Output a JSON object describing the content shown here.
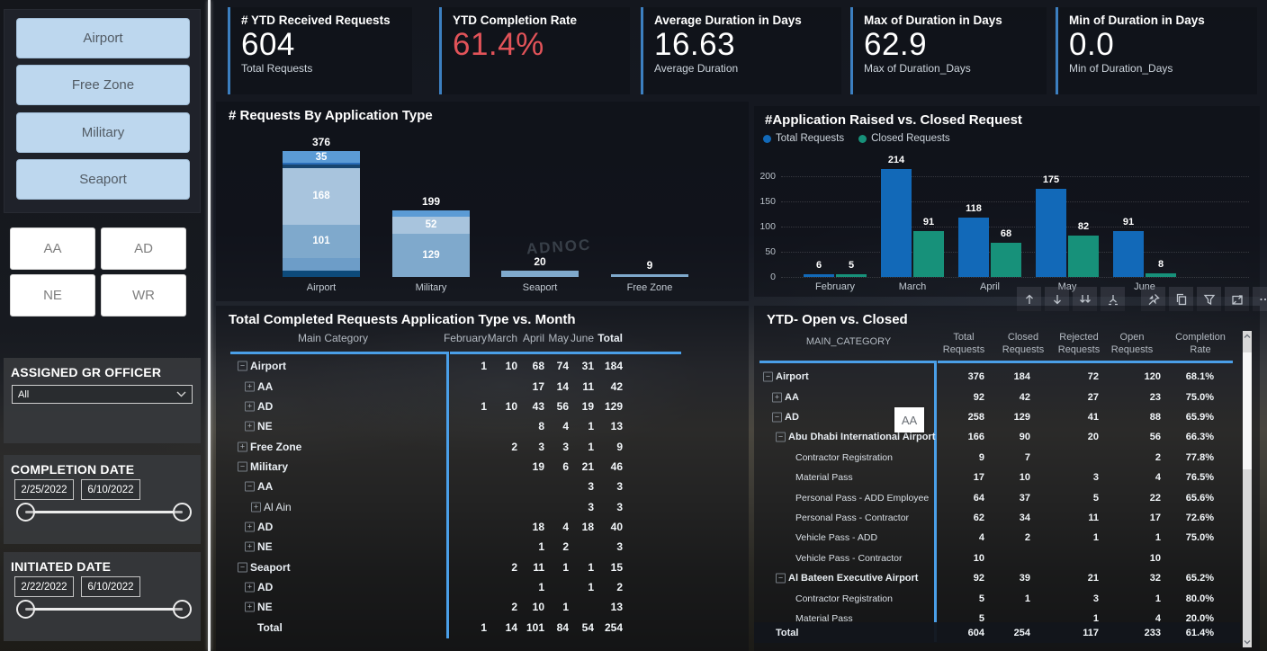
{
  "sidebar": {
    "category_buttons": [
      {
        "label": "Airport"
      },
      {
        "label": "Free Zone"
      },
      {
        "label": "Military"
      },
      {
        "label": "Seaport"
      }
    ],
    "region_buttons": [
      {
        "label": "AA"
      },
      {
        "label": "AD"
      },
      {
        "label": "NE"
      },
      {
        "label": "WR"
      }
    ],
    "gr_officer": {
      "label": "ASSIGNED GR OFFICER",
      "value": "All"
    },
    "completion_date": {
      "label": "COMPLETION DATE",
      "start": "2/25/2022",
      "end": "6/10/2022"
    },
    "initiated_date": {
      "label": "INITIATED DATE",
      "start": "2/22/2022",
      "end": "6/10/2022"
    }
  },
  "kpi_cards": [
    {
      "title": "# YTD Received Requests",
      "value": "604",
      "subtitle": "Total Requests",
      "value_color": "#ffffff"
    },
    {
      "title": "YTD Completion Rate",
      "value": "61.4%",
      "subtitle": "",
      "value_color": "#e25359"
    },
    {
      "title": "Average Duration in Days",
      "value": "16.63",
      "subtitle": "Average Duration",
      "value_color": "#ffffff"
    },
    {
      "title": "Max of Duration in Days",
      "value": "62.9",
      "subtitle": "Max of Duration_Days",
      "value_color": "#ffffff"
    },
    {
      "title": "Min of Duration in Days",
      "value": "0.0",
      "subtitle": "Min of Duration_Days",
      "value_color": "#ffffff"
    }
  ],
  "chart_data": [
    {
      "type": "bar",
      "variant": "stacked",
      "title": "# Requests By Application Type",
      "categories": [
        "Airport",
        "Military",
        "Seaport",
        "Free Zone"
      ],
      "totals": [
        376,
        199,
        20,
        9
      ],
      "bars": [
        {
          "category": "Airport",
          "total": 376,
          "segments": [
            {
              "value": 35,
              "color": "#5b9bd5",
              "labeled": true
            },
            {
              "value": 6,
              "color": "#2a6db8",
              "labeled": false
            },
            {
              "value": 10,
              "color": "#17456f",
              "labeled": false
            },
            {
              "value": 168,
              "color": "#a8c4dd",
              "labeled": true
            },
            {
              "value": 101,
              "color": "#7fa9cc",
              "labeled": true
            },
            {
              "value": 37,
              "color": "#6d9dc8",
              "labeled": false
            },
            {
              "value": 19,
              "color": "#0d4a7a",
              "labeled": false
            }
          ]
        },
        {
          "category": "Military",
          "total": 199,
          "segments": [
            {
              "value": 18,
              "color": "#5b9bd5",
              "labeled": false
            },
            {
              "value": 52,
              "color": "#a8c4dd",
              "labeled": true
            },
            {
              "value": 129,
              "color": "#7fa9cc",
              "labeled": true
            }
          ]
        },
        {
          "category": "Seaport",
          "total": 20,
          "segments": [
            {
              "value": 20,
              "color": "#7fa9cc",
              "labeled": false
            }
          ]
        },
        {
          "category": "Free Zone",
          "total": 9,
          "segments": [
            {
              "value": 9,
              "color": "#7fa9cc",
              "labeled": false
            }
          ]
        }
      ],
      "background_watermark": "ADNOC"
    },
    {
      "type": "bar",
      "variant": "clustered",
      "title": "#Application Raised vs. Closed Request",
      "categories": [
        "February",
        "March",
        "April",
        "May",
        "June"
      ],
      "series": [
        {
          "name": "Total Requests",
          "color": "#1269b8",
          "values": [
            6,
            214,
            118,
            175,
            91
          ]
        },
        {
          "name": "Closed Requests",
          "color": "#17917a",
          "values": [
            5,
            91,
            68,
            82,
            8
          ]
        }
      ],
      "y_ticks": [
        0,
        50,
        100,
        150,
        200
      ],
      "ylim": [
        0,
        200
      ],
      "grid": true,
      "legend_position": "top"
    }
  ],
  "matrix": {
    "title": "Total Completed Requests Application Type vs. Month",
    "row_header": "Main Category",
    "columns": [
      "February",
      "March",
      "April",
      "May",
      "June",
      "Total"
    ],
    "rows": [
      {
        "label": "Airport",
        "level": 0,
        "expand": "minus",
        "bold": true,
        "values": [
          "1",
          "10",
          "68",
          "74",
          "31",
          "184"
        ]
      },
      {
        "label": "AA",
        "level": 1,
        "expand": "plus",
        "bold": true,
        "values": [
          "",
          "",
          "17",
          "14",
          "11",
          "42"
        ]
      },
      {
        "label": "AD",
        "level": 1,
        "expand": "plus",
        "bold": true,
        "values": [
          "1",
          "10",
          "43",
          "56",
          "19",
          "129"
        ]
      },
      {
        "label": "NE",
        "level": 1,
        "expand": "plus",
        "bold": true,
        "values": [
          "",
          "",
          "8",
          "4",
          "1",
          "13"
        ]
      },
      {
        "label": "Free Zone",
        "level": 0,
        "expand": "plus",
        "bold": true,
        "values": [
          "",
          "2",
          "3",
          "3",
          "1",
          "9"
        ]
      },
      {
        "label": "Military",
        "level": 0,
        "expand": "minus",
        "bold": true,
        "values": [
          "",
          "",
          "19",
          "6",
          "21",
          "46"
        ]
      },
      {
        "label": "AA",
        "level": 1,
        "expand": "minus",
        "bold": true,
        "values": [
          "",
          "",
          "",
          "",
          "3",
          "3"
        ]
      },
      {
        "label": "Al Ain",
        "level": 2,
        "expand": "plus",
        "bold": false,
        "values": [
          "",
          "",
          "",
          "",
          "3",
          "3"
        ]
      },
      {
        "label": "AD",
        "level": 1,
        "expand": "plus",
        "bold": true,
        "values": [
          "",
          "",
          "18",
          "4",
          "18",
          "40"
        ]
      },
      {
        "label": "NE",
        "level": 1,
        "expand": "plus",
        "bold": true,
        "values": [
          "",
          "",
          "1",
          "2",
          "",
          "3"
        ]
      },
      {
        "label": "Seaport",
        "level": 0,
        "expand": "minus",
        "bold": true,
        "values": [
          "",
          "2",
          "11",
          "1",
          "1",
          "15"
        ]
      },
      {
        "label": "AD",
        "level": 1,
        "expand": "plus",
        "bold": true,
        "values": [
          "",
          "",
          "1",
          "",
          "1",
          "2"
        ]
      },
      {
        "label": "NE",
        "level": 1,
        "expand": "plus",
        "bold": true,
        "values": [
          "",
          "2",
          "10",
          "1",
          "",
          "13"
        ]
      },
      {
        "label": "Total",
        "level": 1,
        "expand": "none",
        "bold": true,
        "values": [
          "1",
          "14",
          "101",
          "84",
          "54",
          "254"
        ]
      }
    ]
  },
  "ytd_table": {
    "title": "YTD- Open vs. Closed",
    "row_header": "MAIN_CATEGORY",
    "columns": [
      "Total\nRequests",
      "Closed\nRequests",
      "Rejected\nRequests",
      "Open\nRequests",
      "Completion\nRate"
    ],
    "rows": [
      {
        "label": "Airport",
        "level": 0,
        "expand": "minus",
        "bold": true,
        "values": [
          "376",
          "184",
          "72",
          "120",
          "68.1%"
        ]
      },
      {
        "label": "AA",
        "level": 1,
        "expand": "plus",
        "bold": true,
        "values": [
          "92",
          "42",
          "27",
          "23",
          "75.0%"
        ]
      },
      {
        "label": "AD",
        "level": 1,
        "expand": "minus",
        "bold": true,
        "values": [
          "258",
          "129",
          "41",
          "88",
          "65.9%"
        ]
      },
      {
        "label": "Abu Dhabi International Airport",
        "level": 2,
        "expand": "minus",
        "bold": true,
        "values": [
          "166",
          "90",
          "20",
          "56",
          "66.3%"
        ]
      },
      {
        "label": "Contractor Registration",
        "level": 3,
        "expand": "none",
        "bold": false,
        "values": [
          "9",
          "7",
          "",
          "2",
          "77.8%"
        ]
      },
      {
        "label": "Material Pass",
        "level": 3,
        "expand": "none",
        "bold": false,
        "values": [
          "17",
          "10",
          "3",
          "4",
          "76.5%"
        ]
      },
      {
        "label": "Personal Pass - ADD Employee",
        "level": 3,
        "expand": "none",
        "bold": false,
        "values": [
          "64",
          "37",
          "5",
          "22",
          "65.6%"
        ]
      },
      {
        "label": "Personal Pass - Contractor",
        "level": 3,
        "expand": "none",
        "bold": false,
        "values": [
          "62",
          "34",
          "11",
          "17",
          "72.6%"
        ]
      },
      {
        "label": "Vehicle Pass - ADD",
        "level": 3,
        "expand": "none",
        "bold": false,
        "values": [
          "4",
          "2",
          "1",
          "1",
          "75.0%"
        ]
      },
      {
        "label": "Vehicle Pass - Contractor",
        "level": 3,
        "expand": "none",
        "bold": false,
        "values": [
          "10",
          "",
          "",
          "10",
          ""
        ]
      },
      {
        "label": "Al Bateen Executive Airport",
        "level": 2,
        "expand": "minus",
        "bold": true,
        "values": [
          "92",
          "39",
          "21",
          "32",
          "65.2%"
        ]
      },
      {
        "label": "Contractor Registration",
        "level": 3,
        "expand": "none",
        "bold": false,
        "values": [
          "5",
          "1",
          "3",
          "1",
          "80.0%"
        ]
      },
      {
        "label": "Material Pass",
        "level": 3,
        "expand": "none",
        "bold": false,
        "values": [
          "5",
          "",
          "1",
          "4",
          "20.0%"
        ]
      }
    ],
    "total_row": {
      "label": "Total",
      "values": [
        "604",
        "254",
        "117",
        "233",
        "61.4%"
      ]
    },
    "tooltip": "AA"
  },
  "toolbar": {
    "icons": [
      "drill-up",
      "drill-down",
      "double-drill-down",
      "expand-next-level",
      "pin",
      "copy",
      "filter",
      "focus-mode",
      "more-options"
    ]
  }
}
